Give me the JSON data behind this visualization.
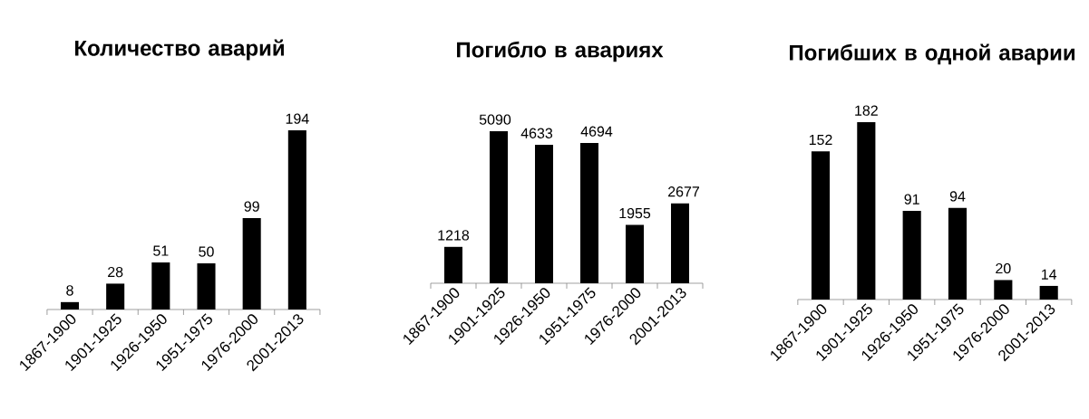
{
  "chart_data": [
    {
      "type": "bar",
      "title": "Количество аварий",
      "categories": [
        "1867-1900",
        "1901-1925",
        "1926-1950",
        "1951-1975",
        "1976-2000",
        "2001-2013"
      ],
      "values": [
        8,
        28,
        51,
        50,
        99,
        194
      ],
      "color": "#000000",
      "data_labels": true
    },
    {
      "type": "bar",
      "title": "Погибло в авариях",
      "categories": [
        "1867-1900",
        "1901-1925",
        "1926-1950",
        "1951-1975",
        "1976-2000",
        "2001-2013"
      ],
      "values": [
        1218,
        5090,
        4633,
        4694,
        1955,
        2677
      ],
      "color": "#000000",
      "data_labels": true
    },
    {
      "type": "bar",
      "title": "Погибших в одной аварии",
      "categories": [
        "1867-1900",
        "1901-1925",
        "1926-1950",
        "1951-1975",
        "1976-2000",
        "2001-2013"
      ],
      "values": [
        152,
        182,
        91,
        94,
        20,
        14
      ],
      "color": "#000000",
      "data_labels": true
    }
  ]
}
